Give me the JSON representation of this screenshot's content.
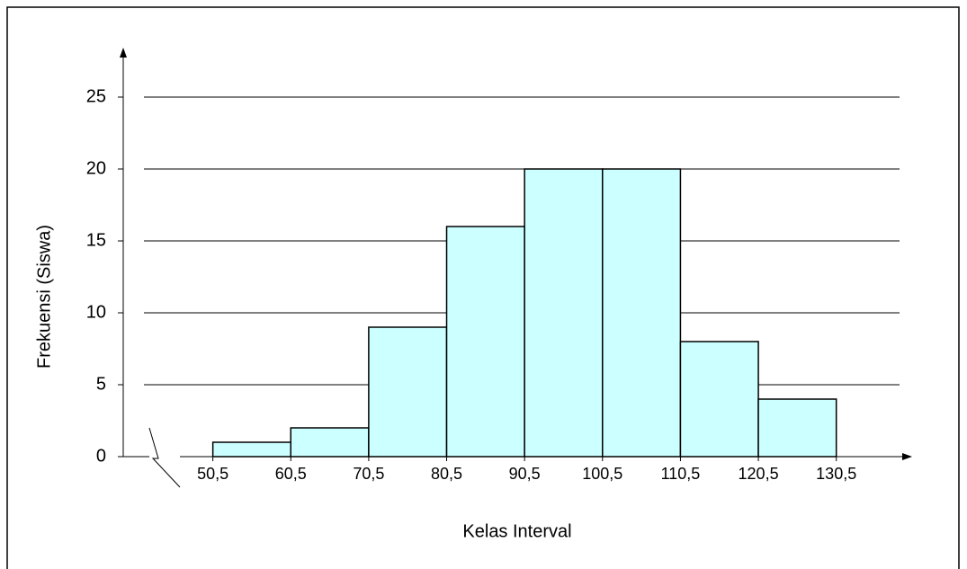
{
  "chart_data": {
    "type": "histogram",
    "xlabel": "Kelas Interval",
    "ylabel": "Frekuensi (Siswa)",
    "bins": [
      50.5,
      60.5,
      70.5,
      80.5,
      90.5,
      100.5,
      110.5,
      120.5,
      130.5
    ],
    "values": [
      1,
      2,
      9,
      16,
      20,
      20,
      8,
      4
    ],
    "color": "#ccffff",
    "xlim": [
      39,
      140
    ],
    "xticks": [
      {
        "value": 50.5,
        "label": "50,5"
      },
      {
        "value": 60.5,
        "label": "60,5"
      },
      {
        "value": 70.5,
        "label": "70,5"
      },
      {
        "value": 80.5,
        "label": "80,5"
      },
      {
        "value": 90.5,
        "label": "90,5"
      },
      {
        "value": 100.5,
        "label": "100,5"
      },
      {
        "value": 110.5,
        "label": "110,5"
      },
      {
        "value": 120.5,
        "label": "120,5"
      },
      {
        "value": 130.5,
        "label": "130,5"
      }
    ],
    "ylim": [
      0,
      28
    ],
    "yticks": [
      0,
      5,
      10,
      15,
      20,
      25
    ],
    "grid": true
  }
}
